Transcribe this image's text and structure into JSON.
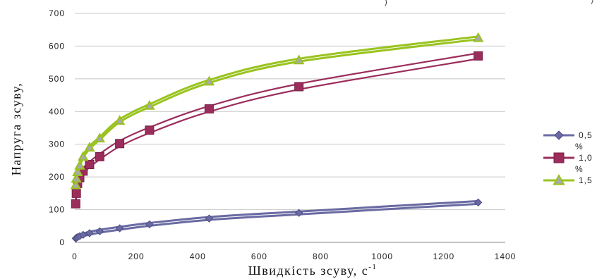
{
  "chart_data": {
    "type": "line",
    "title": "",
    "xlabel": "Швидкість зсуву, с",
    "xlabel_sup": "-1",
    "ylabel": "Напруга зсуву,",
    "xlim": [
      0,
      1400
    ],
    "ylim": [
      0,
      700
    ],
    "x_ticks": [
      "0",
      "200",
      "400",
      "600",
      "800",
      "1000",
      "1200",
      "1400"
    ],
    "y_ticks": [
      "0",
      "100",
      "200",
      "300",
      "400",
      "500",
      "600",
      "700"
    ],
    "grid": true,
    "legend_position": "right",
    "series": [
      {
        "name": "0,5 %",
        "legend_lines": [
          "0,5",
          "%"
        ],
        "color": "#6a6aa3",
        "marker": "diamond",
        "x": [
          3,
          5,
          9,
          16,
          27,
          48,
          81,
          146,
          243,
          437,
          729,
          1312
        ],
        "y": [
          12,
          14,
          16,
          19,
          23,
          28,
          34,
          43,
          55,
          73,
          90,
          122
        ]
      },
      {
        "name": "1,0 %",
        "legend_lines": [
          "1,0",
          "%"
        ],
        "color": "#9b2d5c",
        "marker": "square",
        "x": [
          3,
          5,
          9,
          16,
          27,
          48,
          81,
          146,
          243,
          437,
          729,
          1312
        ],
        "y": [
          118,
          150,
          180,
          198,
          218,
          238,
          262,
          302,
          343,
          408,
          476,
          570
        ]
      },
      {
        "name": "1,5 %",
        "legend_lines": [
          "1,5"
        ],
        "color": "#99c31e",
        "marker": "triangle",
        "x": [
          3,
          5,
          9,
          16,
          27,
          48,
          81,
          146,
          243,
          437,
          729,
          1312
        ],
        "y": [
          175,
          195,
          215,
          235,
          262,
          290,
          318,
          372,
          418,
          492,
          557,
          625
        ]
      }
    ],
    "top_text_fragments": [
      ")",
      "/"
    ]
  }
}
